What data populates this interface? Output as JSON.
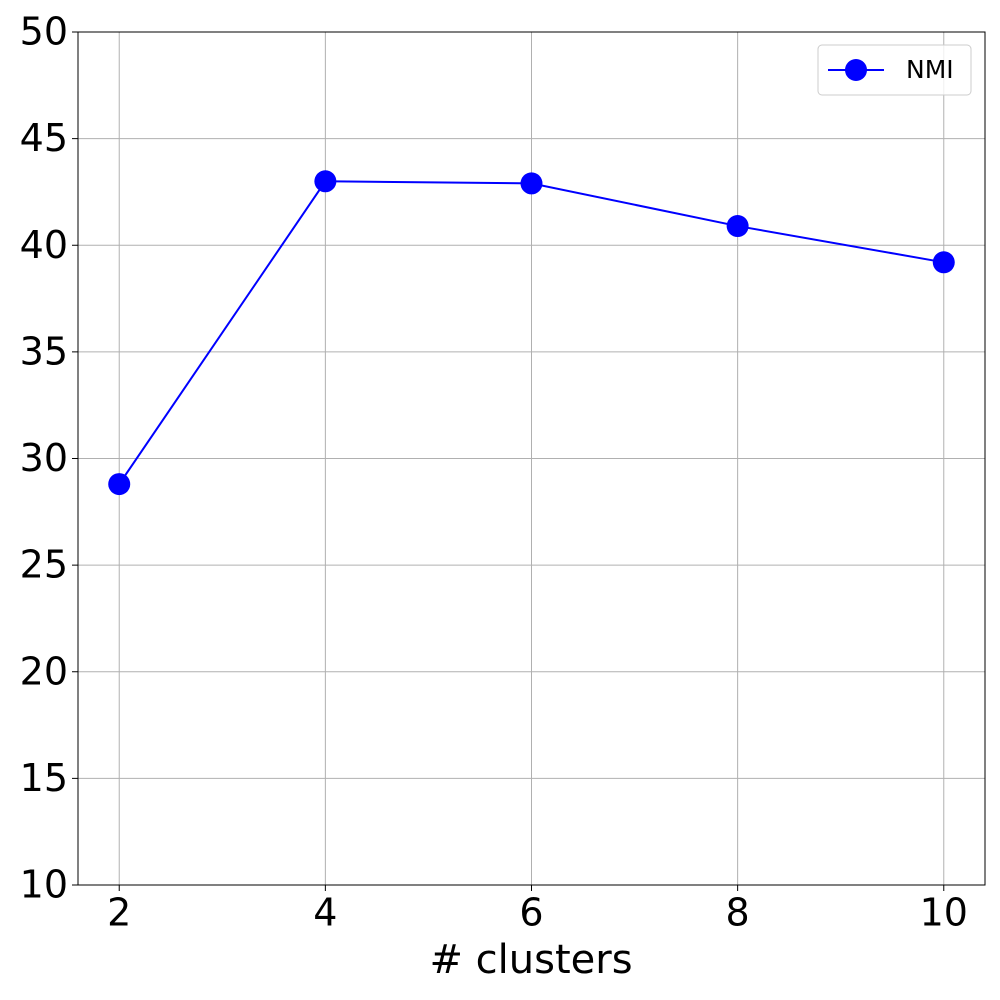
{
  "chart_data": {
    "type": "line",
    "xlabel": "# clusters",
    "x": [
      2,
      4,
      6,
      8,
      10
    ],
    "series": [
      {
        "name": "NMI",
        "color": "#0000ff",
        "values": [
          28.8,
          43.0,
          42.9,
          40.9,
          39.2
        ]
      }
    ],
    "xlim": [
      1.6,
      10.4
    ],
    "xticks": [
      2,
      4,
      6,
      8,
      10
    ],
    "ylim": [
      10,
      50
    ],
    "yticks": [
      10,
      15,
      20,
      25,
      30,
      35,
      40,
      45,
      50
    ],
    "grid": true,
    "legend": "upper right"
  }
}
